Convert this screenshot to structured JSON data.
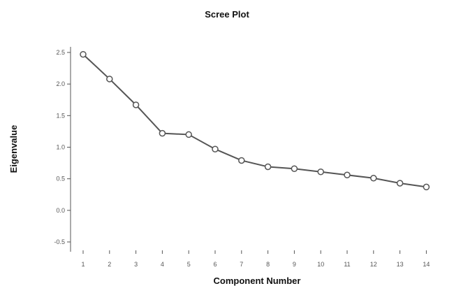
{
  "chart_data": {
    "type": "line",
    "title": "Scree Plot",
    "xlabel": "Component Number",
    "ylabel": "Eigenvalue",
    "categories": [
      "1",
      "2",
      "3",
      "4",
      "5",
      "6",
      "7",
      "8",
      "9",
      "10",
      "11",
      "12",
      "13",
      "14"
    ],
    "series": [
      {
        "values": [
          2.47,
          2.08,
          1.67,
          1.22,
          1.2,
          0.97,
          0.79,
          0.69,
          0.66,
          0.61,
          0.56,
          0.51,
          0.43,
          0.37
        ]
      }
    ],
    "ylim": [
      -0.5,
      2.5
    ],
    "yticks": [
      -0.5,
      0.0,
      0.5,
      1.0,
      1.5,
      2.0,
      2.5
    ],
    "ytick_labels": [
      "-0.5",
      "0.0",
      "0.5",
      "1.0",
      "1.5",
      "2.0",
      "2.5"
    ],
    "grid": false,
    "legend": "none",
    "marker": "circle",
    "color": "#555555"
  }
}
